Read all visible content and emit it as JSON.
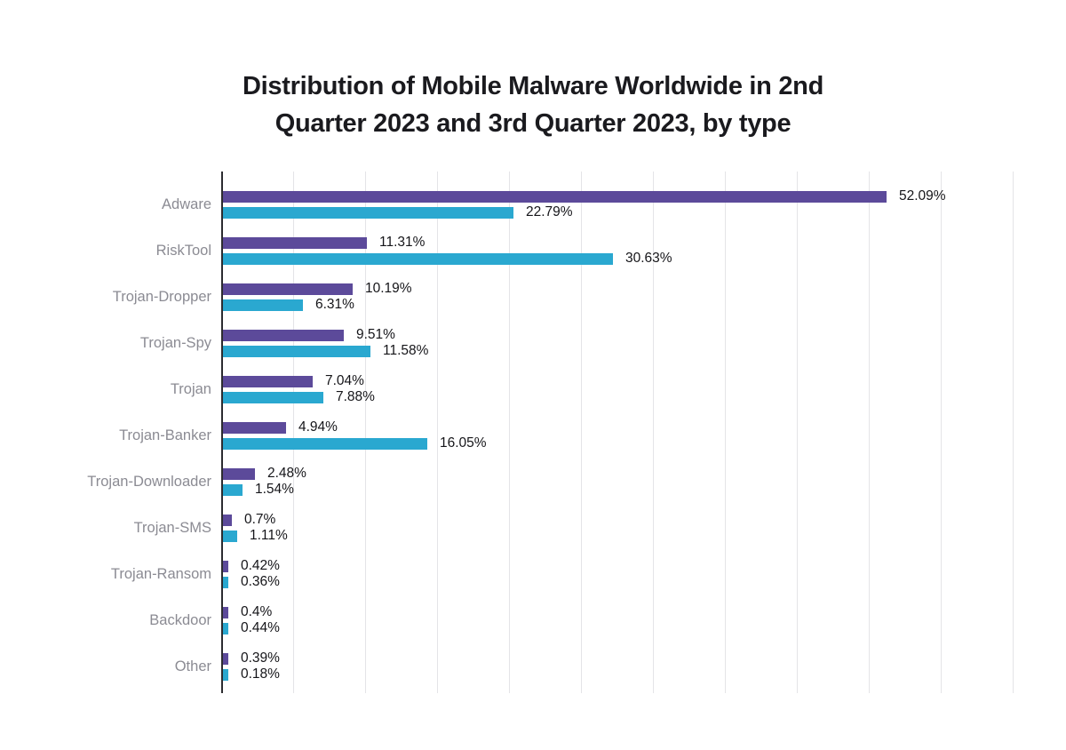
{
  "title": {
    "text": "Distribution of Mobile Malware Worldwide in 2nd Quarter 2023 and 3rd Quarter 2023, by type",
    "lines": [
      "Distribution of Mobile Malware Worldwide in 2nd",
      "Quarter 2023 and 3rd Quarter 2023, by type"
    ]
  },
  "colors": {
    "series_q2": "#5c4a9a",
    "series_q3": "#2aa8d0",
    "gridline": "#e4e4e7",
    "axis": "#2c2c30",
    "category_label": "#8b8b93",
    "value_label": "#151519",
    "title_text": "#1a1a1e"
  },
  "chart_data": {
    "type": "bar",
    "orientation": "horizontal",
    "title": "Distribution of Mobile Malware Worldwide in 2nd Quarter 2023 and 3rd Quarter 2023, by type",
    "xlabel": "",
    "ylabel": "",
    "xlim": [
      0,
      65
    ],
    "grid": true,
    "legend_position": "none",
    "categories": [
      "Adware",
      "RiskTool",
      "Trojan-Dropper",
      "Trojan-Spy",
      "Trojan",
      "Trojan-Banker",
      "Trojan-Downloader",
      "Trojan-SMS",
      "Trojan-Ransom",
      "Backdoor",
      "Other"
    ],
    "series": [
      {
        "name": "2nd Quarter 2023",
        "color": "#5c4a9a",
        "values": [
          52.09,
          11.31,
          10.19,
          9.51,
          7.04,
          4.94,
          2.48,
          0.7,
          0.42,
          0.4,
          0.39
        ],
        "labels": [
          "52.09%",
          "11.31%",
          "10.19%",
          "9.51%",
          "7.04%",
          "4.94%",
          "2.48%",
          "0.7%",
          "0.42%",
          "0.4%",
          "0.39%"
        ]
      },
      {
        "name": "3rd Quarter 2023",
        "color": "#2aa8d0",
        "values": [
          22.79,
          30.63,
          6.31,
          11.58,
          7.88,
          16.05,
          1.54,
          1.11,
          0.36,
          0.44,
          0.18
        ],
        "labels": [
          "22.79%",
          "30.63%",
          "6.31%",
          "11.58%",
          "7.88%",
          "16.05%",
          "1.54%",
          "1.11%",
          "0.36%",
          "0.44%",
          "0.18%"
        ]
      }
    ]
  }
}
